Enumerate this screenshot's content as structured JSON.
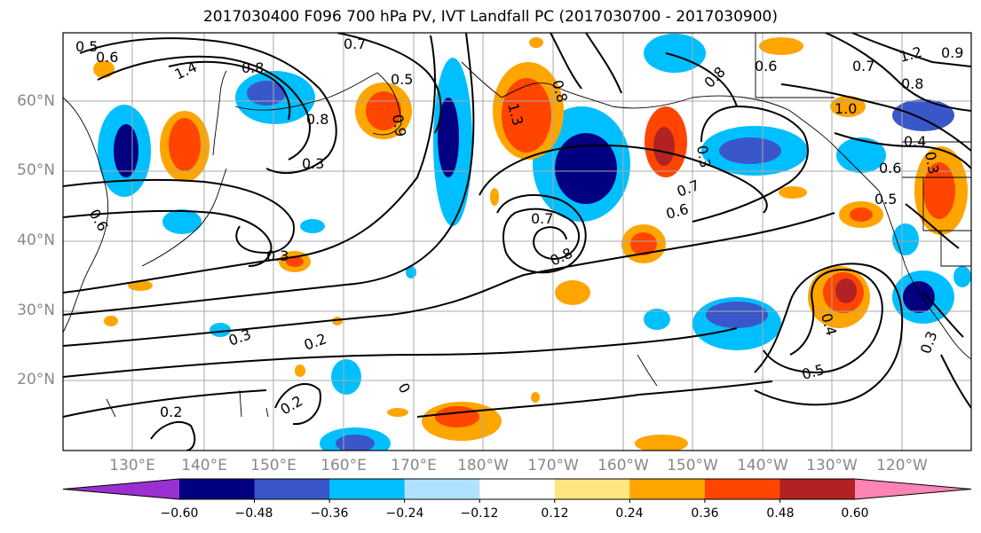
{
  "title": "2017030400 F096 700 hPa PV, IVT Landfall PC (2017030700 - 2017030900)",
  "lat_labels": [
    "60°N",
    "50°N",
    "40°N",
    "30°N",
    "20°N"
  ],
  "lon_labels": [
    "130°E",
    "140°E",
    "150°E",
    "160°E",
    "170°E",
    "180°W",
    "170°W",
    "160°W",
    "150°W",
    "140°W",
    "130°W",
    "120°W"
  ],
  "colorbar": {
    "ticks": [
      "−0.60",
      "−0.48",
      "−0.36",
      "−0.24",
      "−0.12",
      "0.12",
      "0.24",
      "0.36",
      "0.48",
      "0.60"
    ],
    "colors": [
      "#9b30d0",
      "#000080",
      "#3a57c9",
      "#00bfff",
      "#b0e2ff",
      "#ffffff",
      "#ffe680",
      "#ffa500",
      "#ff4500",
      "#b22222",
      "#ff83b4"
    ]
  },
  "contour_labels": [
    {
      "text": "0.5"
    },
    {
      "text": "0.6"
    },
    {
      "text": "1.4"
    },
    {
      "text": "0.8"
    },
    {
      "text": "0.7"
    },
    {
      "text": "0.8"
    },
    {
      "text": "0.9"
    },
    {
      "text": "0.5"
    },
    {
      "text": "0.3"
    },
    {
      "text": "1.3"
    },
    {
      "text": "0.8"
    },
    {
      "text": "0.6"
    },
    {
      "text": "0.7"
    },
    {
      "text": "1.2"
    },
    {
      "text": "0.8"
    },
    {
      "text": "0.9"
    },
    {
      "text": "1.0"
    },
    {
      "text": "0.4"
    },
    {
      "text": "0.3"
    },
    {
      "text": "0.6"
    },
    {
      "text": "0.5"
    },
    {
      "text": "0.7"
    },
    {
      "text": "0.6"
    },
    {
      "text": "0.7"
    },
    {
      "text": "0.8"
    },
    {
      "text": "0.3"
    },
    {
      "text": "0.6"
    },
    {
      "text": "0.3"
    },
    {
      "text": "0.2"
    },
    {
      "text": "0.3"
    },
    {
      "text": "0.2"
    },
    {
      "text": "0.2"
    },
    {
      "text": "0.4"
    },
    {
      "text": "0.5"
    },
    {
      "text": "0.3"
    },
    {
      "text": "0"
    },
    {
      "text": "0.8"
    }
  ]
}
